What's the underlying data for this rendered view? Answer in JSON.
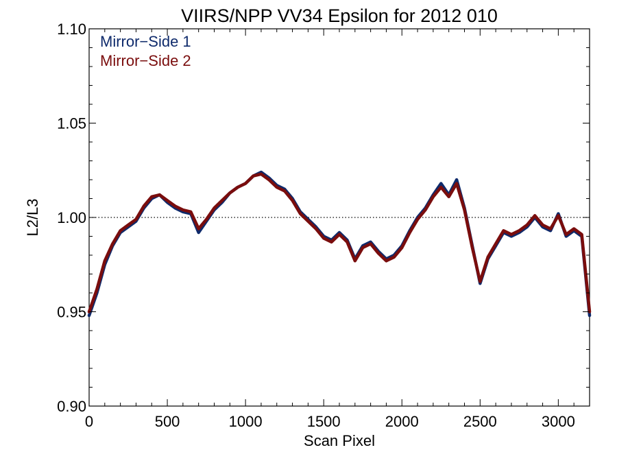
{
  "chart_data": {
    "type": "line",
    "title": "VIIRS/NPP VV34 Epsilon for 2012 010",
    "xlabel": "Scan Pixel",
    "ylabel": "L2/L3",
    "xlim": [
      0,
      3200
    ],
    "ylim": [
      0.9,
      1.1
    ],
    "x_ticks": [
      0,
      500,
      1000,
      1500,
      2000,
      2500,
      3000
    ],
    "x_tick_labels": [
      "0",
      "500",
      "1000",
      "1500",
      "2000",
      "2500",
      "3000"
    ],
    "y_ticks": [
      0.9,
      0.95,
      1.0,
      1.05,
      1.1
    ],
    "y_tick_labels": [
      "0.90",
      "0.95",
      "1.00",
      "1.05",
      "1.10"
    ],
    "reference_line": {
      "y": 1.0,
      "style": "dotted"
    },
    "grid": false,
    "legend_position": "top-left",
    "series": [
      {
        "name": "Mirror−Side 1",
        "color": "#0e2a6b",
        "x": [
          0,
          50,
          100,
          150,
          200,
          250,
          300,
          350,
          400,
          450,
          500,
          550,
          600,
          650,
          700,
          750,
          800,
          850,
          900,
          950,
          1000,
          1050,
          1100,
          1150,
          1200,
          1250,
          1300,
          1350,
          1400,
          1450,
          1500,
          1550,
          1600,
          1650,
          1700,
          1750,
          1800,
          1850,
          1900,
          1950,
          2000,
          2050,
          2100,
          2150,
          2200,
          2250,
          2300,
          2350,
          2400,
          2450,
          2500,
          2550,
          2600,
          2650,
          2700,
          2750,
          2800,
          2850,
          2900,
          2950,
          3000,
          3050,
          3100,
          3150,
          3200
        ],
        "values": [
          0.948,
          0.96,
          0.975,
          0.985,
          0.992,
          0.995,
          0.998,
          1.005,
          1.01,
          1.012,
          1.008,
          1.005,
          1.003,
          1.002,
          0.992,
          0.998,
          1.004,
          1.008,
          1.013,
          1.016,
          1.018,
          1.022,
          1.024,
          1.021,
          1.017,
          1.015,
          1.01,
          1.003,
          0.999,
          0.995,
          0.99,
          0.988,
          0.992,
          0.988,
          0.978,
          0.985,
          0.987,
          0.982,
          0.978,
          0.98,
          0.985,
          0.993,
          1.0,
          1.005,
          1.012,
          1.018,
          1.012,
          1.02,
          1.005,
          0.985,
          0.965,
          0.978,
          0.985,
          0.992,
          0.99,
          0.992,
          0.995,
          1.0,
          0.995,
          0.993,
          1.002,
          0.99,
          0.993,
          0.99,
          0.948
        ]
      },
      {
        "name": "Mirror−Side 2",
        "color": "#7a0d0d",
        "x": [
          0,
          50,
          100,
          150,
          200,
          250,
          300,
          350,
          400,
          450,
          500,
          550,
          600,
          650,
          700,
          750,
          800,
          850,
          900,
          950,
          1000,
          1050,
          1100,
          1150,
          1200,
          1250,
          1300,
          1350,
          1400,
          1450,
          1500,
          1550,
          1600,
          1650,
          1700,
          1750,
          1800,
          1850,
          1900,
          1950,
          2000,
          2050,
          2100,
          2150,
          2200,
          2250,
          2300,
          2350,
          2400,
          2450,
          2500,
          2550,
          2600,
          2650,
          2700,
          2750,
          2800,
          2850,
          2900,
          2950,
          3000,
          3050,
          3100,
          3150,
          3200
        ],
        "values": [
          0.95,
          0.962,
          0.977,
          0.986,
          0.993,
          0.996,
          0.999,
          1.006,
          1.011,
          1.012,
          1.009,
          1.006,
          1.004,
          1.003,
          0.994,
          0.999,
          1.005,
          1.009,
          1.013,
          1.016,
          1.018,
          1.022,
          1.023,
          1.02,
          1.016,
          1.014,
          1.009,
          1.002,
          0.998,
          0.994,
          0.989,
          0.987,
          0.991,
          0.987,
          0.977,
          0.984,
          0.986,
          0.981,
          0.977,
          0.979,
          0.984,
          0.992,
          0.999,
          1.004,
          1.011,
          1.016,
          1.011,
          1.018,
          1.004,
          0.984,
          0.966,
          0.979,
          0.986,
          0.993,
          0.991,
          0.993,
          0.996,
          1.001,
          0.996,
          0.994,
          1.001,
          0.991,
          0.994,
          0.991,
          0.95
        ]
      }
    ]
  }
}
